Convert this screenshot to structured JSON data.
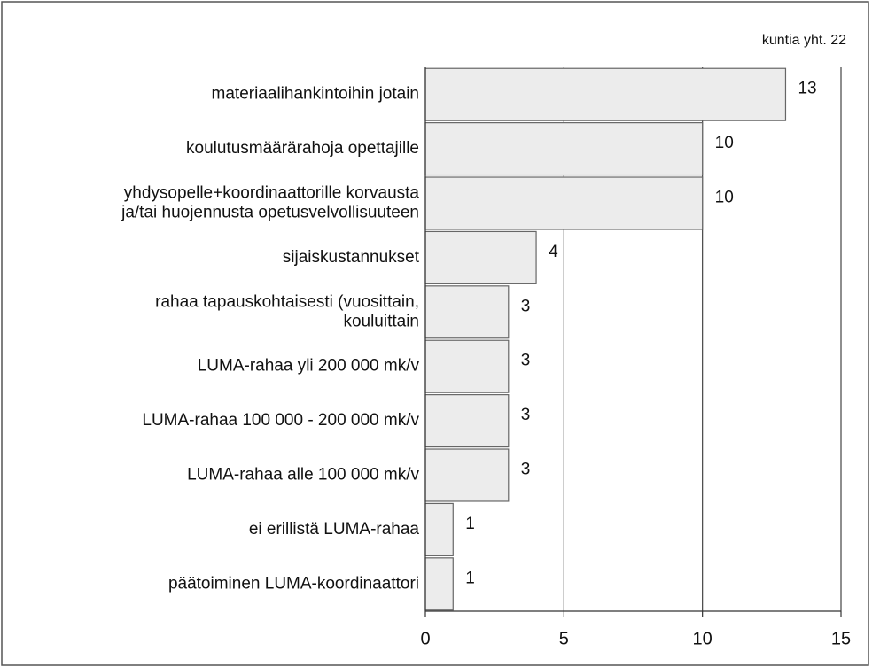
{
  "chart_data": {
    "type": "barh",
    "annotation": "kuntia yht. 22",
    "categories": [
      [
        "materiaalihankintoihin jotain"
      ],
      [
        "koulutusmäärärahoja opettajille"
      ],
      [
        "yhdysopelle+koordinaattorille korvausta",
        "ja/tai huojennusta opetusvelvollisuuteen"
      ],
      [
        "sijaiskustannukset"
      ],
      [
        "rahaa tapauskohtaisesti (vuosittain,",
        "kouluittain"
      ],
      [
        "LUMA-rahaa yli 200 000 mk/v"
      ],
      [
        "LUMA-rahaa 100 000 - 200 000 mk/v"
      ],
      [
        "LUMA-rahaa alle 100 000 mk/v"
      ],
      [
        "ei erillistä LUMA-rahaa"
      ],
      [
        "päätoiminen LUMA-koordinaattori"
      ]
    ],
    "values": [
      13,
      10,
      10,
      4,
      3,
      3,
      3,
      3,
      1,
      1
    ],
    "color": "#ececec",
    "xlim": [
      0,
      15
    ],
    "xticks": [
      0,
      5,
      10,
      15
    ],
    "grid": true
  }
}
